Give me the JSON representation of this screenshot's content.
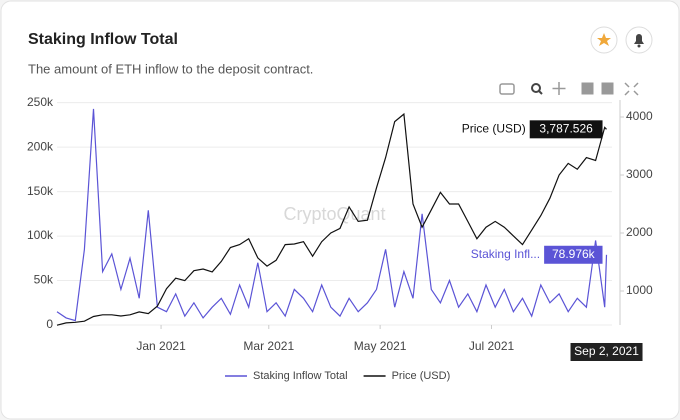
{
  "chart_data": {
    "type": "line",
    "title": "Staking Inflow Total",
    "subtitle": "The amount of ETH inflow to the deposit contract.",
    "watermark": "CryptoQuant",
    "x": [
      "2020-11-05",
      "2020-11-10",
      "2020-11-15",
      "2020-11-20",
      "2020-11-25",
      "2020-11-30",
      "2020-12-05",
      "2020-12-10",
      "2020-12-15",
      "2020-12-20",
      "2020-12-25",
      "2020-12-30",
      "2021-01-04",
      "2021-01-09",
      "2021-01-14",
      "2021-01-19",
      "2021-01-24",
      "2021-01-29",
      "2021-02-03",
      "2021-02-08",
      "2021-02-13",
      "2021-02-18",
      "2021-02-23",
      "2021-02-28",
      "2021-03-05",
      "2021-03-10",
      "2021-03-15",
      "2021-03-20",
      "2021-03-25",
      "2021-03-30",
      "2021-04-04",
      "2021-04-09",
      "2021-04-14",
      "2021-04-19",
      "2021-04-24",
      "2021-04-29",
      "2021-05-04",
      "2021-05-09",
      "2021-05-14",
      "2021-05-19",
      "2021-05-24",
      "2021-05-29",
      "2021-06-03",
      "2021-06-08",
      "2021-06-13",
      "2021-06-18",
      "2021-06-23",
      "2021-06-28",
      "2021-07-03",
      "2021-07-08",
      "2021-07-13",
      "2021-07-18",
      "2021-07-23",
      "2021-07-28",
      "2021-08-02",
      "2021-08-07",
      "2021-08-12",
      "2021-08-17",
      "2021-08-22",
      "2021-08-27",
      "2021-09-01",
      "2021-09-02"
    ],
    "series": [
      {
        "name": "Staking Inflow Total",
        "color": "#5b54d6",
        "axis": "y",
        "values": [
          15000,
          8000,
          5000,
          85000,
          243000,
          60000,
          80000,
          40000,
          75000,
          30000,
          129000,
          20000,
          15000,
          35000,
          10000,
          25000,
          8000,
          20000,
          30000,
          12000,
          45000,
          20000,
          70000,
          15000,
          25000,
          10000,
          40000,
          30000,
          15000,
          45000,
          20000,
          10000,
          30000,
          15000,
          25000,
          40000,
          85000,
          20000,
          60000,
          30000,
          125000,
          40000,
          25000,
          50000,
          20000,
          35000,
          15000,
          45000,
          20000,
          40000,
          15000,
          30000,
          10000,
          45000,
          25000,
          35000,
          15000,
          30000,
          20000,
          95000,
          20000,
          78976
        ],
        "value_labels": [
          null,
          null,
          null,
          null,
          null,
          null,
          null,
          null,
          null,
          null,
          null,
          null,
          null,
          null,
          null,
          null,
          null,
          null,
          null,
          null,
          null,
          null,
          null,
          null,
          null,
          null,
          null,
          null,
          null,
          null,
          null,
          null,
          null,
          null,
          null,
          null,
          null,
          null,
          null,
          null,
          null,
          null,
          null,
          null,
          null,
          null,
          null,
          null,
          null,
          null,
          null,
          null,
          null,
          null,
          null,
          null,
          null,
          null,
          null,
          null,
          null,
          "78.976k"
        ]
      },
      {
        "name": "Price (USD)",
        "color": "#111111",
        "axis": "y2",
        "values": [
          410,
          450,
          460,
          480,
          560,
          590,
          590,
          570,
          590,
          640,
          610,
          740,
          1040,
          1220,
          1180,
          1350,
          1380,
          1330,
          1510,
          1750,
          1800,
          1900,
          1570,
          1430,
          1530,
          1800,
          1810,
          1850,
          1600,
          1850,
          2000,
          2080,
          2450,
          2200,
          2220,
          2780,
          3300,
          3920,
          4050,
          2500,
          2100,
          2400,
          2700,
          2500,
          2500,
          2200,
          1900,
          2100,
          2200,
          2100,
          1950,
          1800,
          2050,
          2300,
          2600,
          3000,
          3200,
          3100,
          3300,
          3250,
          3820,
          3787.526
        ],
        "value_labels": [
          null,
          null,
          null,
          null,
          null,
          null,
          null,
          null,
          null,
          null,
          null,
          null,
          null,
          null,
          null,
          null,
          null,
          null,
          null,
          null,
          null,
          null,
          null,
          null,
          null,
          null,
          null,
          null,
          null,
          null,
          null,
          null,
          null,
          null,
          null,
          null,
          null,
          null,
          null,
          null,
          null,
          null,
          null,
          null,
          null,
          null,
          null,
          null,
          null,
          null,
          null,
          null,
          null,
          null,
          null,
          null,
          null,
          null,
          null,
          null,
          null,
          "3,787.526"
        ]
      }
    ],
    "xlim": [
      "2020-11-05",
      "2021-09-05"
    ],
    "xticks": [
      {
        "value": "2021-01-01",
        "label": "Jan 2021"
      },
      {
        "value": "2021-03-01",
        "label": "Mar 2021"
      },
      {
        "value": "2021-05-01",
        "label": "May 2021"
      },
      {
        "value": "2021-07-01",
        "label": "Jul 2021"
      }
    ],
    "ylim": [
      0,
      253000
    ],
    "yticks": [
      0,
      {
        "value": 50000,
        "label": "50k"
      },
      {
        "value": 100000,
        "label": "100k"
      },
      {
        "value": 150000,
        "label": "150k"
      },
      {
        "value": 200000,
        "label": "200k"
      },
      {
        "value": 250000,
        "label": "250k"
      }
    ],
    "y2lim": [
      414,
      4293
    ],
    "y2ticks": [
      1000,
      2000,
      3000,
      4000
    ],
    "grid": true,
    "legend": "bottom",
    "annotations": {
      "inflow_tooltip_label": "Staking Infl...",
      "date_tooltip": "Sep 2, 2021"
    }
  }
}
